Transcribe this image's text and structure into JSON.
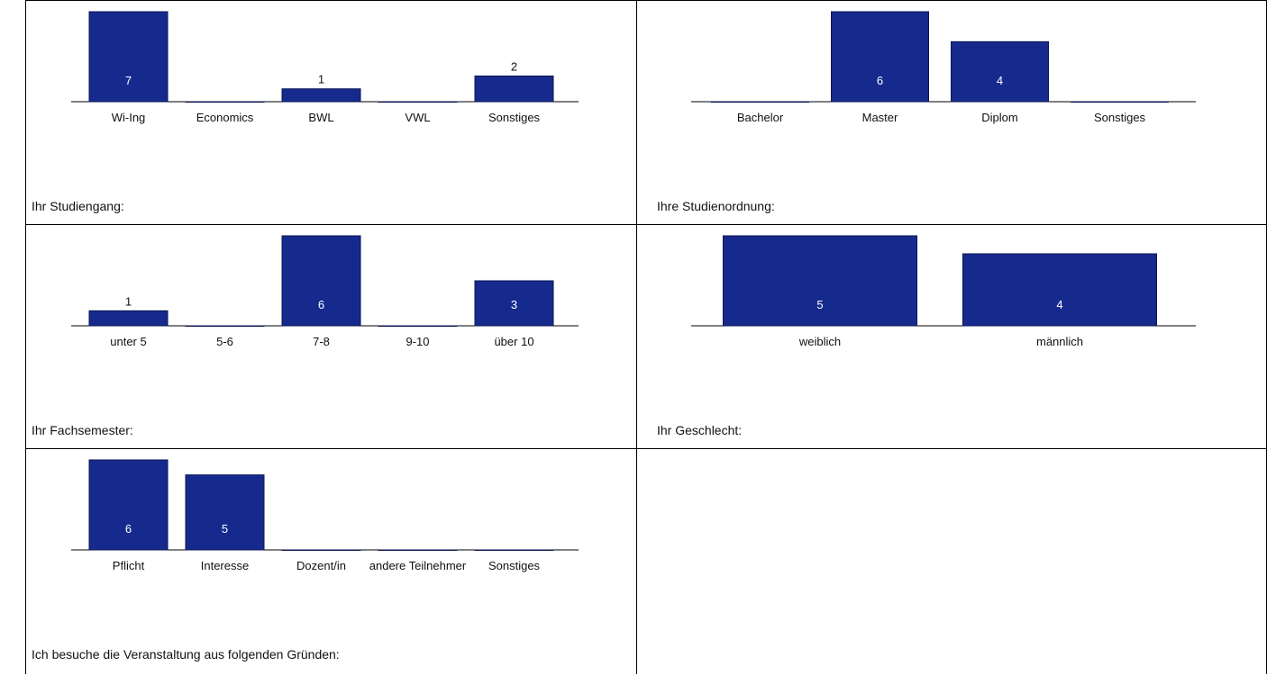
{
  "colors": {
    "bar": "#162a8e",
    "bar_stroke": "#0a1550",
    "axis": "#000000",
    "label_inside": "#ffffff",
    "label_outside": "#111111"
  },
  "chart_data": [
    {
      "type": "bar",
      "question": "Ihr Studiengang:",
      "categories": [
        "Wi-Ing",
        "Economics",
        "BWL",
        "VWL",
        "Sonstiges"
      ],
      "values": [
        7,
        0,
        1,
        0,
        2
      ],
      "value_labels": [
        "7",
        "",
        "1",
        "",
        "2"
      ],
      "ylim": [
        0,
        7
      ]
    },
    {
      "type": "bar",
      "question": "Ihre Studienordnung:",
      "categories": [
        "Bachelor",
        "Master",
        "Diplom",
        "Sonstiges"
      ],
      "values": [
        0,
        6,
        4,
        0
      ],
      "value_labels": [
        "",
        "6",
        "4",
        ""
      ],
      "ylim": [
        0,
        6
      ]
    },
    {
      "type": "bar",
      "question": "Ihr Fachsemester:",
      "categories": [
        "unter 5",
        "5-6",
        "7-8",
        "9-10",
        "über 10"
      ],
      "values": [
        1,
        0,
        6,
        0,
        3
      ],
      "value_labels": [
        "1",
        "",
        "6",
        "",
        "3"
      ],
      "ylim": [
        0,
        6
      ]
    },
    {
      "type": "bar",
      "question": "Ihr Geschlecht:",
      "categories": [
        "weiblich",
        "männlich"
      ],
      "values": [
        5,
        4
      ],
      "value_labels": [
        "5",
        "4"
      ],
      "ylim": [
        0,
        5
      ]
    },
    {
      "type": "bar",
      "question": "Ich besuche die Veranstaltung aus folgenden Gründen:",
      "categories": [
        "Pflicht",
        "Interesse",
        "Dozent/in",
        "andere Teilnehmer",
        "Sonstiges"
      ],
      "values": [
        6,
        5,
        0,
        0,
        0
      ],
      "value_labels": [
        "6",
        "5",
        "",
        "",
        ""
      ],
      "ylim": [
        0,
        6
      ]
    }
  ]
}
